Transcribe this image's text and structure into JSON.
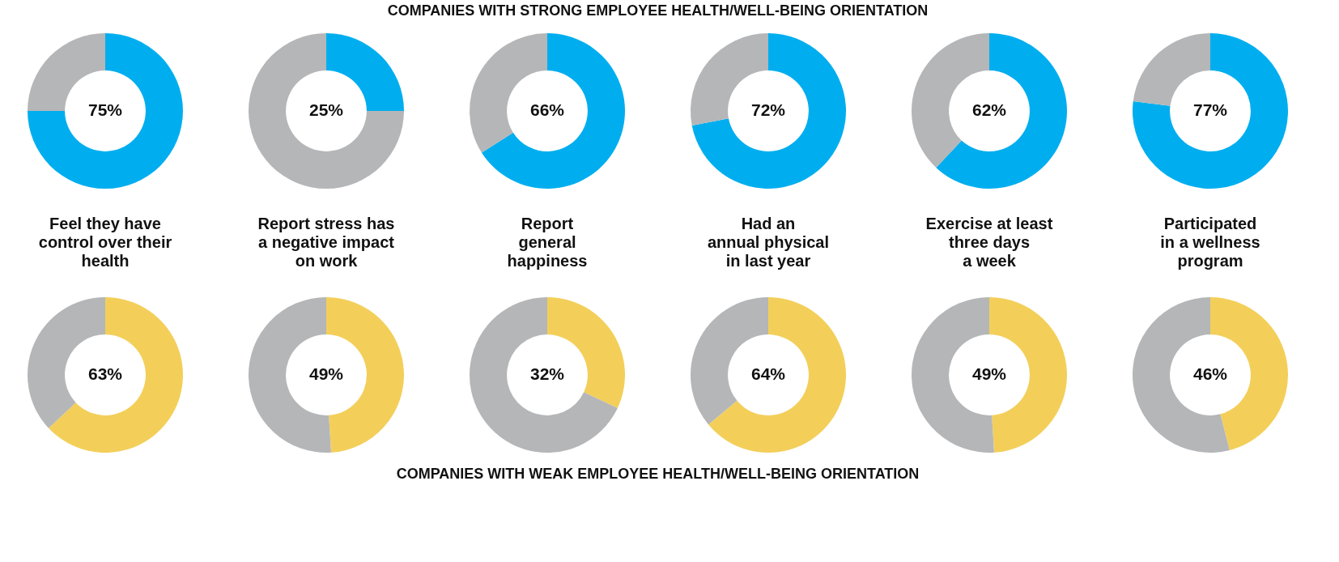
{
  "chart_data": [
    {
      "type": "donut",
      "title": "Feel they have\ncontrol over their\nhealth",
      "categories": [
        null,
        null
      ],
      "values": [
        75,
        25
      ],
      "colors": [
        "#00aeef",
        "#b5b6b8"
      ],
      "value_labels": [
        "75%",
        null
      ],
      "annotations": [
        "COMPANIES WITH STRONG EMPLOYEE HEALTH/WELL-BEING ORIENTATION"
      ]
    },
    {
      "type": "donut",
      "title": "Report stress has\na negative impact\non work",
      "categories": [
        null,
        null
      ],
      "values": [
        25,
        75
      ],
      "colors": [
        "#00aeef",
        "#b5b6b8"
      ],
      "value_labels": [
        "25%",
        null
      ]
    },
    {
      "type": "donut",
      "title": "Report\ngeneral\nhappiness",
      "categories": [
        null,
        null
      ],
      "values": [
        66,
        34
      ],
      "colors": [
        "#00aeef",
        "#b5b6b8"
      ],
      "value_labels": [
        "66%",
        null
      ]
    },
    {
      "type": "donut",
      "title": "Had an\nannual physical\nin last year",
      "categories": [
        null,
        null
      ],
      "values": [
        72,
        28
      ],
      "colors": [
        "#00aeef",
        "#b5b6b8"
      ],
      "value_labels": [
        "72%",
        null
      ]
    },
    {
      "type": "donut",
      "title": "Exercise at least\nthree days\na week",
      "categories": [
        null,
        null
      ],
      "values": [
        62,
        38
      ],
      "colors": [
        "#00aeef",
        "#b5b6b8"
      ],
      "value_labels": [
        "62%",
        null
      ]
    },
    {
      "type": "donut",
      "title": "Participated\nin a wellness\nprogram",
      "categories": [
        null,
        null
      ],
      "values": [
        77,
        23
      ],
      "colors": [
        "#00aeef",
        "#b5b6b8"
      ],
      "value_labels": [
        "77%",
        null
      ]
    },
    {
      "type": "donut",
      "categories": [
        null,
        null
      ],
      "values": [
        63,
        37
      ],
      "colors": [
        "#f3cf5a",
        "#b5b6b8"
      ],
      "value_labels": [
        "63%",
        null
      ],
      "annotations": [
        "COMPANIES WITH WEAK EMPLOYEE HEALTH/WELL-BEING ORIENTATION"
      ]
    },
    {
      "type": "donut",
      "categories": [
        null,
        null
      ],
      "values": [
        49,
        51
      ],
      "colors": [
        "#f3cf5a",
        "#b5b6b8"
      ],
      "value_labels": [
        "49%",
        null
      ]
    },
    {
      "type": "donut",
      "categories": [
        null,
        null
      ],
      "values": [
        32,
        68
      ],
      "colors": [
        "#f3cf5a",
        "#b5b6b8"
      ],
      "value_labels": [
        "32%",
        null
      ]
    },
    {
      "type": "donut",
      "categories": [
        null,
        null
      ],
      "values": [
        64,
        36
      ],
      "colors": [
        "#f3cf5a",
        "#b5b6b8"
      ],
      "value_labels": [
        "64%",
        null
      ]
    },
    {
      "type": "donut",
      "categories": [
        null,
        null
      ],
      "values": [
        49,
        51
      ],
      "colors": [
        "#f3cf5a",
        "#b5b6b8"
      ],
      "value_labels": [
        "49%",
        null
      ]
    },
    {
      "type": "donut",
      "categories": [
        null,
        null
      ],
      "values": [
        46,
        54
      ],
      "colors": [
        "#f3cf5a",
        "#b5b6b8"
      ],
      "value_labels": [
        "46%",
        null
      ]
    }
  ]
}
